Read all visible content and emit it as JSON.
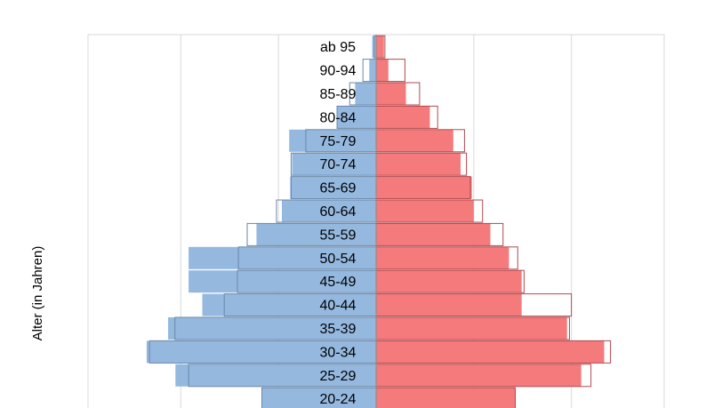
{
  "chart_data": {
    "type": "bar",
    "orientation": "horizontal",
    "subtype": "population-pyramid",
    "ylabel": "Alter (in Jahren)",
    "categories": [
      "ab 95",
      "90-94",
      "85-89",
      "80-84",
      "75-79",
      "70-74",
      "65-69",
      "60-64",
      "55-59",
      "50-54",
      "45-49",
      "40-44",
      "35-39",
      "30-34",
      "25-29",
      "20-24"
    ],
    "series": [
      {
        "side": "left",
        "color": "#95b8df",
        "values": [
          0.8,
          1.4,
          4.3,
          8.0,
          17.8,
          17.2,
          17.6,
          19.3,
          24.5,
          38.4,
          38.4,
          35.6,
          42.6,
          47.0,
          41.1,
          23.4
        ]
      },
      {
        "side": "left",
        "outline": true,
        "color": "#6b88a8",
        "values": [
          0.4,
          2.7,
          5.4,
          8.0,
          14.4,
          17.4,
          17.4,
          20.4,
          26.4,
          28.2,
          28.4,
          31.1,
          41.2,
          46.4,
          38.4,
          23.4
        ]
      },
      {
        "side": "right",
        "color": "#f47a7b",
        "values": [
          1.6,
          2.5,
          6.1,
          11.0,
          15.8,
          17.3,
          19.6,
          20.0,
          23.4,
          27.2,
          29.8,
          29.8,
          39.1,
          46.7,
          42.0,
          28.5
        ]
      },
      {
        "side": "right",
        "outline": true,
        "color": "#b24a4f",
        "values": [
          1.8,
          5.9,
          8.9,
          12.6,
          18.1,
          18.5,
          19.3,
          21.8,
          26.0,
          29.0,
          30.3,
          40.0,
          39.6,
          48.0,
          44.0,
          28.5
        ]
      }
    ],
    "xlim": [
      -59,
      59
    ],
    "grid": true
  }
}
